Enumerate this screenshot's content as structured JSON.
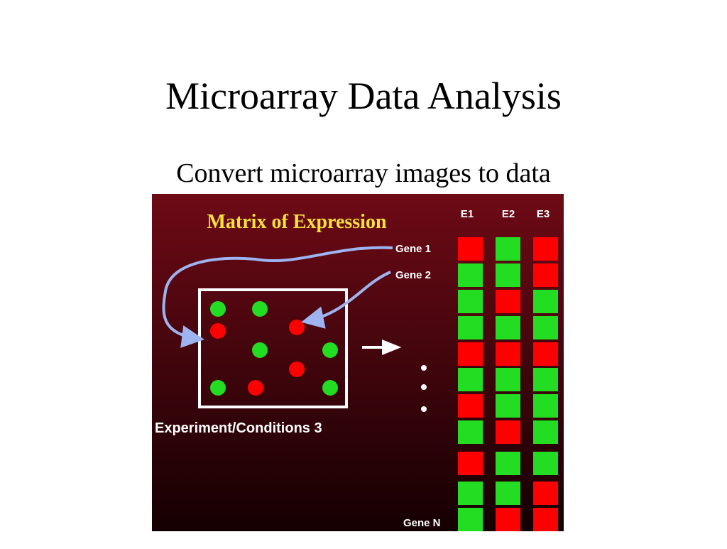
{
  "title": "Microarray Data Analysis",
  "subtitle": "Convert microarray images to data",
  "figure": {
    "heading": "Matrix of Expression",
    "columns": [
      "E1",
      "E2",
      "E3"
    ],
    "genes": [
      "Gene 1",
      "Gene 2",
      "Gene N"
    ],
    "caption": "Experiment/Conditions 3"
  }
}
